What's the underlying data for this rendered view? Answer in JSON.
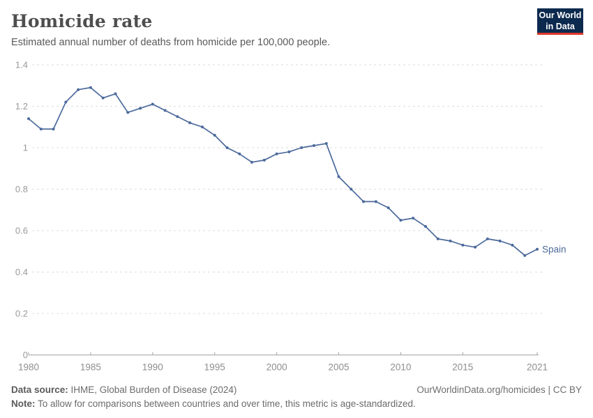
{
  "header": {
    "title": "Homicide rate",
    "subtitle": "Estimated annual number of deaths from homicide per 100,000 people.",
    "logo": {
      "line1": "Our World",
      "line2": "in Data"
    }
  },
  "chart_data": {
    "type": "line",
    "title": "Homicide rate",
    "xlabel": "",
    "ylabel": "",
    "ylim": [
      0,
      1.4
    ],
    "yticks": [
      0,
      0.2,
      0.4,
      0.6,
      0.8,
      1,
      1.2,
      1.4
    ],
    "ytick_labels": [
      "0",
      "0.2",
      "0.4",
      "0.6",
      "0.8",
      "1",
      "1.2",
      "1.4"
    ],
    "xticks": [
      1980,
      1985,
      1990,
      1995,
      2000,
      2005,
      2010,
      2015,
      2021
    ],
    "xlim": [
      1980,
      2021
    ],
    "grid": "horizontal-dashed",
    "legend_position": "end-of-line-label",
    "series": [
      {
        "name": "Spain",
        "color": "#4c6a9c",
        "x": [
          1980,
          1981,
          1982,
          1983,
          1984,
          1985,
          1986,
          1987,
          1988,
          1989,
          1990,
          1991,
          1992,
          1993,
          1994,
          1995,
          1996,
          1997,
          1998,
          1999,
          2000,
          2001,
          2002,
          2003,
          2004,
          2005,
          2006,
          2007,
          2008,
          2009,
          2010,
          2011,
          2012,
          2013,
          2014,
          2015,
          2016,
          2017,
          2018,
          2019,
          2020,
          2021
        ],
        "values": [
          1.14,
          1.09,
          1.09,
          1.22,
          1.28,
          1.29,
          1.24,
          1.26,
          1.17,
          1.19,
          1.21,
          1.18,
          1.15,
          1.12,
          1.1,
          1.06,
          1.0,
          0.97,
          0.93,
          0.94,
          0.97,
          0.98,
          1.0,
          1.01,
          1.02,
          0.86,
          0.8,
          0.74,
          0.74,
          0.71,
          0.65,
          0.66,
          0.62,
          0.56,
          0.55,
          0.53,
          0.52,
          0.56,
          0.55,
          0.53,
          0.48,
          0.51
        ]
      }
    ]
  },
  "style": {
    "grid_color": "#dcdcdc",
    "axis_color": "#a3a3a3",
    "tick_label_color": "#9a9a9a"
  },
  "footer": {
    "source_label": "Data source:",
    "source_text": " IHME, Global Burden of Disease (2024)",
    "note_label": "Note:",
    "note_text": " To allow for comparisons between countries and over time, this metric is age-standardized.",
    "link": "OurWorldinData.org/homicides | CC BY"
  }
}
